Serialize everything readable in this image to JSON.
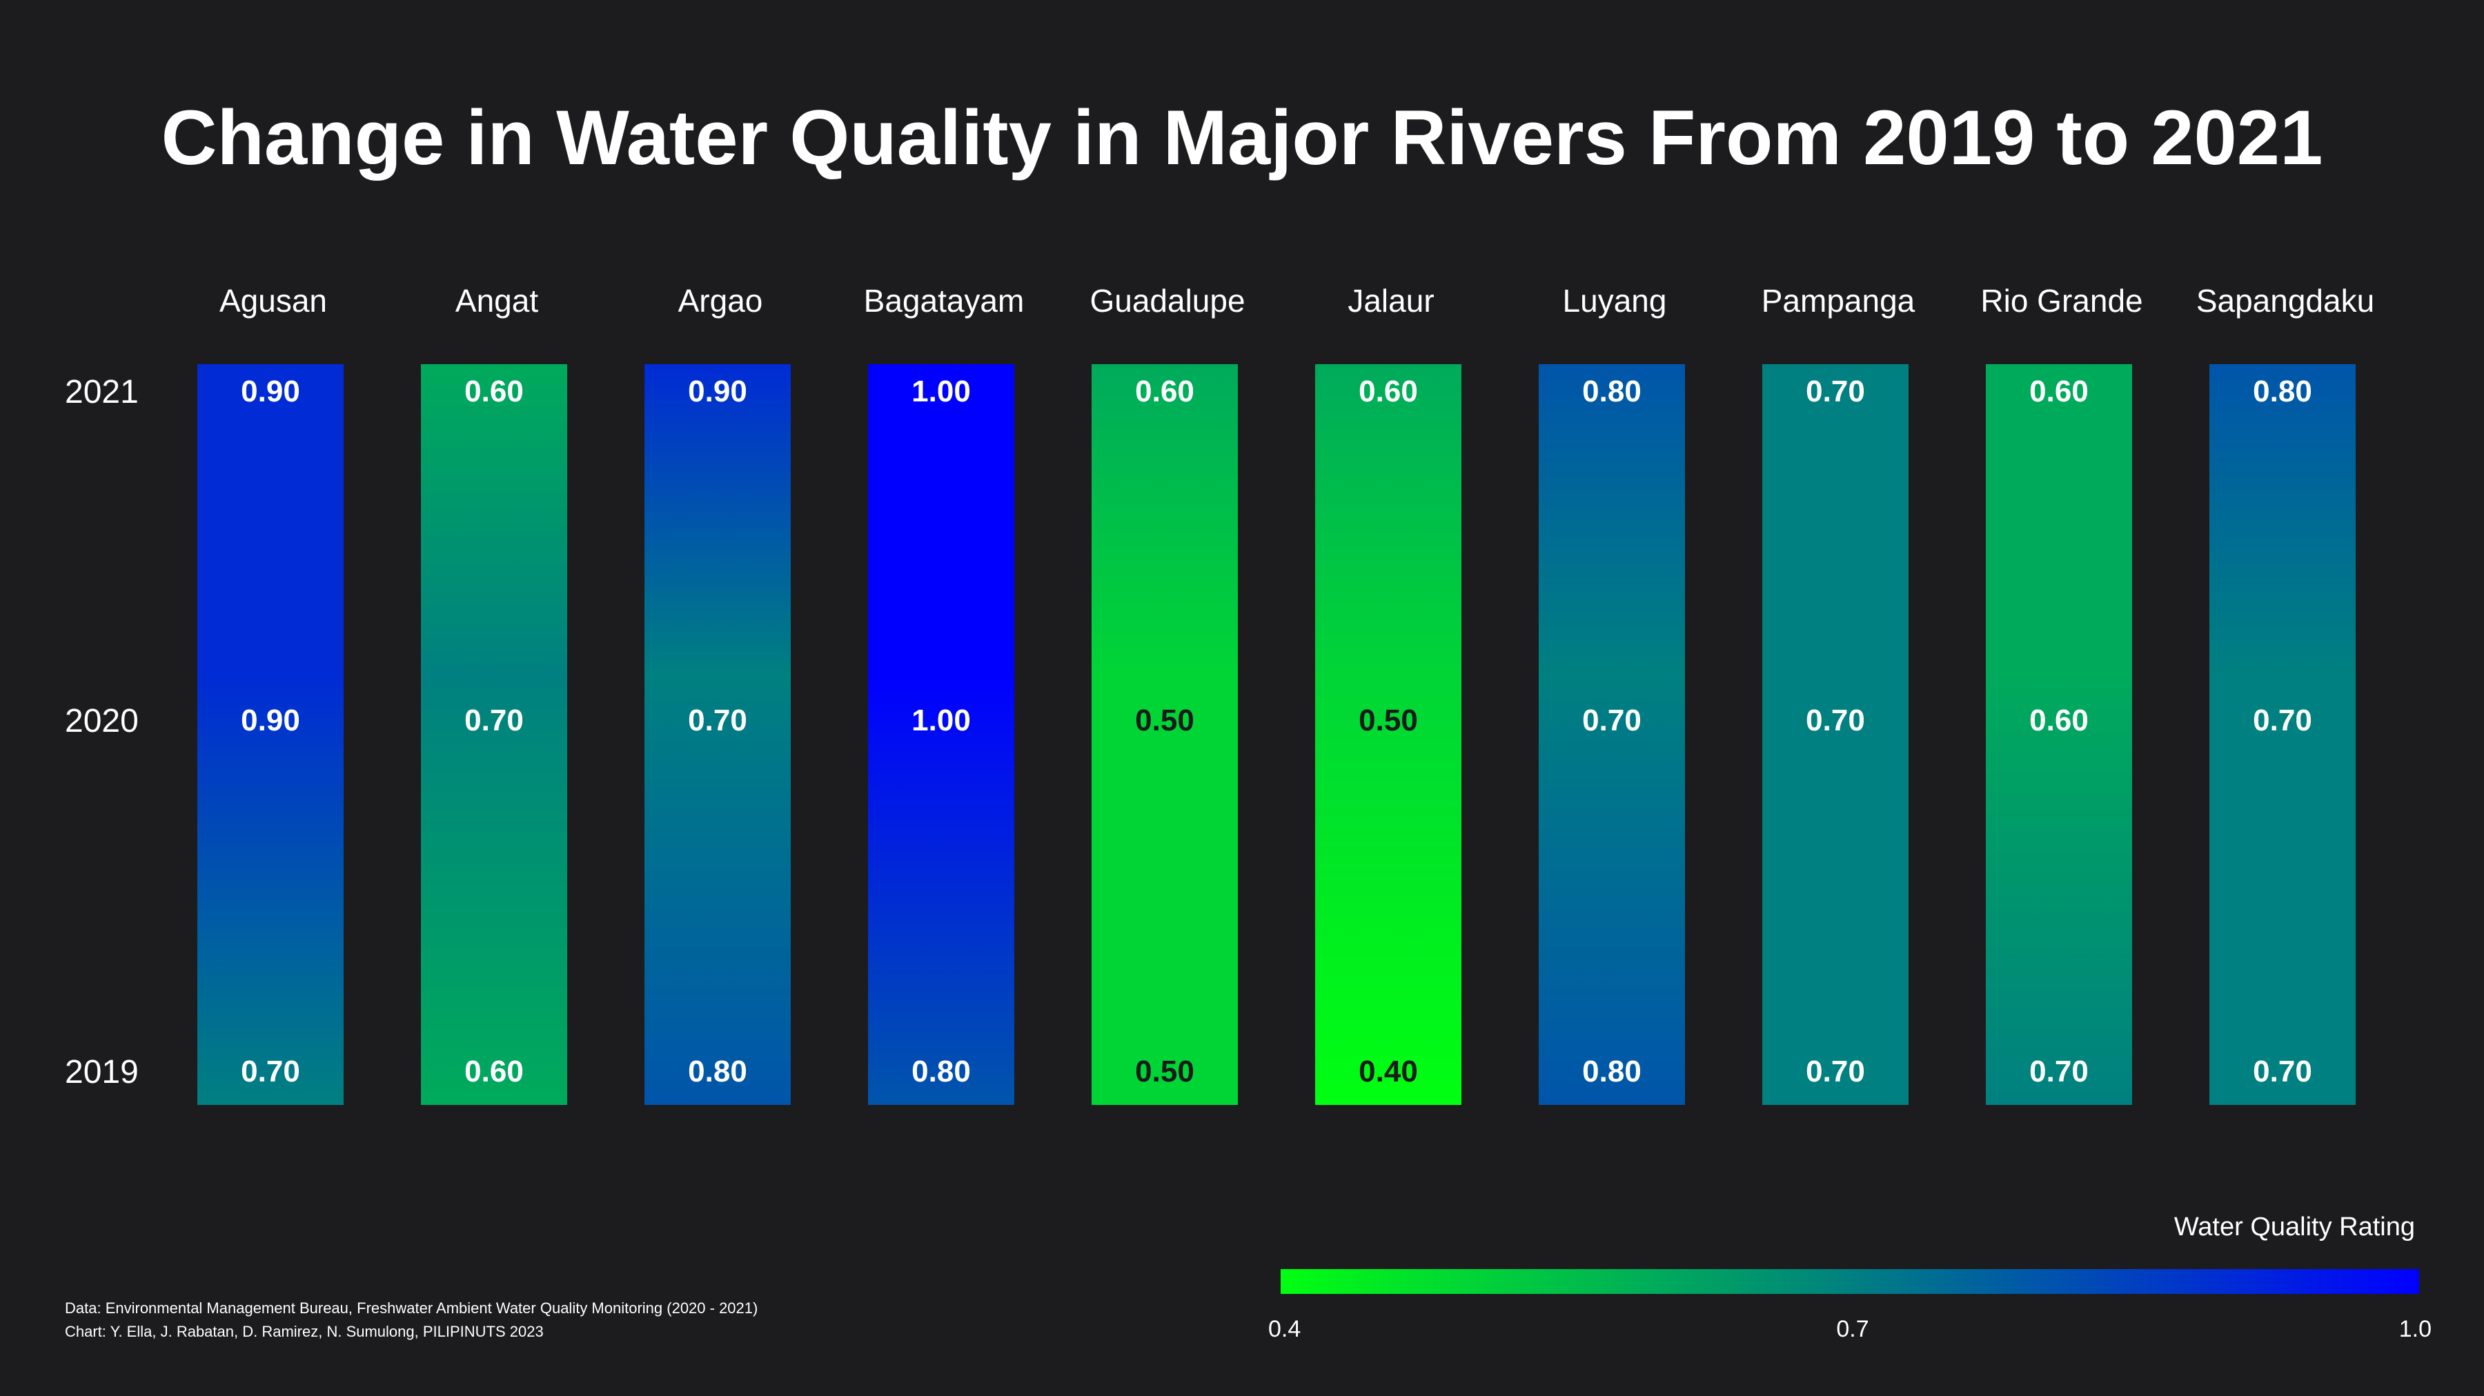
{
  "chart_data": {
    "type": "heatmap",
    "title": "Change in Water Quality in Major Rivers From 2019 to 2021",
    "categories": [
      "Agusan",
      "Angat",
      "Argao",
      "Bagatayam",
      "Guadalupe",
      "Jalaur",
      "Luyang",
      "Pampanga",
      "Rio Grande",
      "Sapangdaku"
    ],
    "years": [
      "2021",
      "2020",
      "2019"
    ],
    "series": [
      {
        "name": "2021",
        "values": [
          0.9,
          0.6,
          0.9,
          1.0,
          0.6,
          0.6,
          0.8,
          0.7,
          0.6,
          0.8
        ]
      },
      {
        "name": "2020",
        "values": [
          0.9,
          0.7,
          0.7,
          1.0,
          0.5,
          0.5,
          0.7,
          0.7,
          0.6,
          0.7
        ]
      },
      {
        "name": "2019",
        "values": [
          0.7,
          0.6,
          0.8,
          0.8,
          0.5,
          0.4,
          0.8,
          0.7,
          0.7,
          0.7
        ]
      }
    ],
    "value_labels": {
      "2021": [
        "0.90",
        "0.60",
        "0.90",
        "1.00",
        "0.60",
        "0.60",
        "0.80",
        "0.70",
        "0.60",
        "0.80"
      ],
      "2020": [
        "0.90",
        "0.70",
        "0.70",
        "1.00",
        "0.50",
        "0.50",
        "0.70",
        "0.70",
        "0.60",
        "0.70"
      ],
      "2019": [
        "0.70",
        "0.60",
        "0.80",
        "0.80",
        "0.50",
        "0.40",
        "0.80",
        "0.70",
        "0.70",
        "0.70"
      ]
    },
    "legend": {
      "title": "Water Quality Rating",
      "min": 0.4,
      "max": 1.0,
      "ticks": [
        "0.4",
        "0.7",
        "1.0"
      ],
      "placement": "bottom-right"
    },
    "colors": {
      "low": "#00ff11",
      "mid": "#008080",
      "high": "#0000ff",
      "background": "#1c1b1e",
      "text_light": "#ffffff",
      "text_dark": "#1a1a1a"
    },
    "source": "Data: Environmental Management Bureau, Freshwater Ambient Water Quality Monitoring (2020 - 2021)",
    "credit": "Chart: Y. Ella, J. Rabatan, D. Ramirez, N. Sumulong, PILIPINUTS 2023"
  }
}
